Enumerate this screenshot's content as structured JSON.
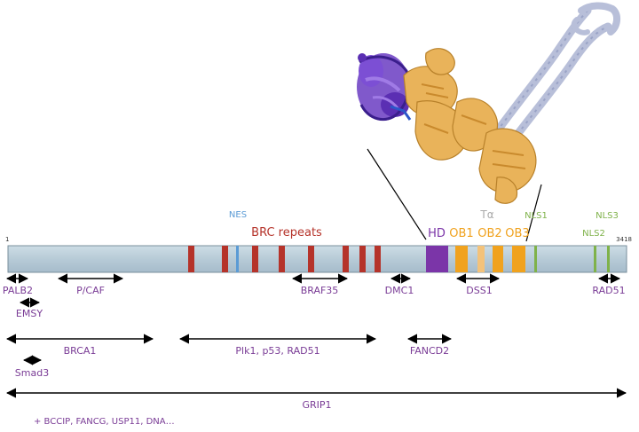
{
  "protein": {
    "start": "1",
    "end": "3418",
    "bar_color": "#b7cbd7"
  },
  "domain_labels": {
    "nes": "NES",
    "brc_repeats": "BRC repeats",
    "hd": "HD",
    "ob1": "OB1",
    "ob2": "OB2",
    "ob3": "OB3",
    "talpha": "Tα",
    "nls1": "NLS1",
    "nls2": "NLS2",
    "nls3": "NLS3"
  },
  "colors": {
    "brc": "#b5332a",
    "nes": "#5b9bd5",
    "hd": "#7b35a8",
    "ob": "#f0a21e",
    "ob_light": "#f3c27a",
    "nls": "#7fb24a",
    "partner_text": "#7a3c96",
    "structure_purple": "#5b2fb3",
    "structure_gold": "#e9b35a",
    "structure_helix": "#b8bfd9"
  },
  "partners": {
    "palb2": "PALB2",
    "emsy": "EMSY",
    "pcaf": "P/CAF",
    "braf35": "BRAF35",
    "dmc1": "DMC1",
    "dss1": "DSS1",
    "rad51": "RAD51",
    "brca1": "BRCA1",
    "plk1": "Plk1, p53, RAD51",
    "fancd2": "FANCD2",
    "smad3": "Smad3",
    "grip1": "GRIP1",
    "others": "+ BCCIP, FANCG, USP11, DNA…"
  }
}
